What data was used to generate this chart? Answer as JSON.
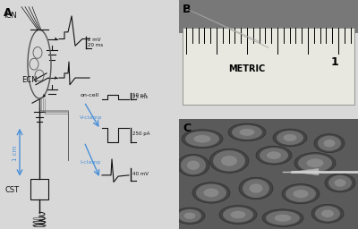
{
  "panel_A_label": "A",
  "panel_B_label": "B",
  "panel_C_label": "C",
  "bg_color": "#f0f0f0",
  "label_fontsize": 9,
  "annotation_fontsize": 6,
  "scale_bar_color": "#333333",
  "blue_color": "#4a90d9",
  "text_color": "#222222",
  "ICN_label": "ICN",
  "ECN_label": "ECN",
  "CST_label": "CST",
  "on_cell_text": "on-cell",
  "v_clamp_text": "V-clamp",
  "i_clamp_text": "I-clamp",
  "one_cm_text": "1 cm",
  "metric_text": "METRIC",
  "figure_bg": "#e8e8e8"
}
